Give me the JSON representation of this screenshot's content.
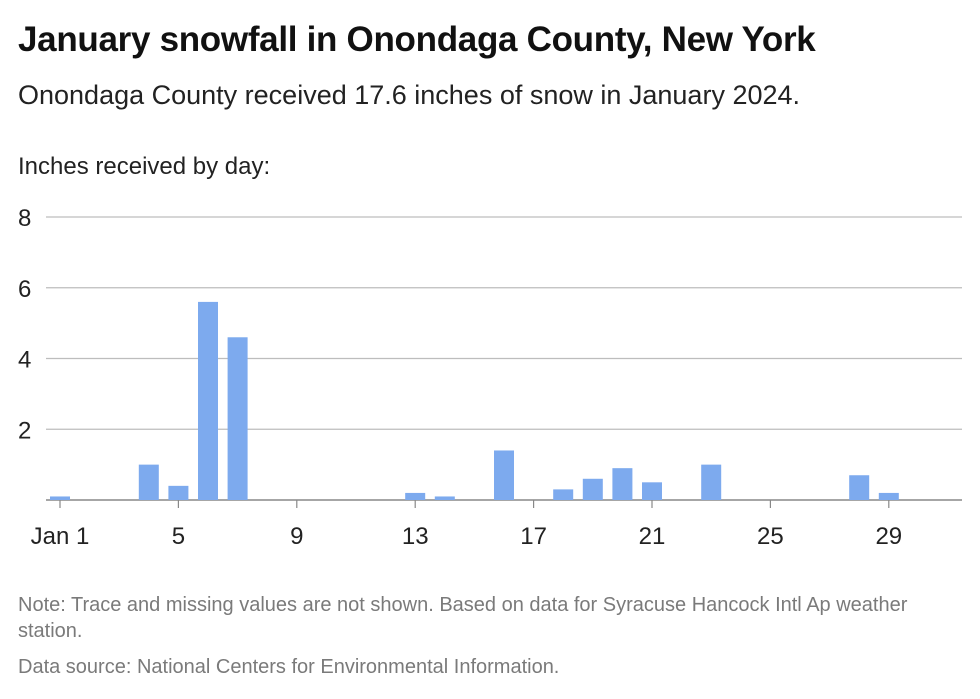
{
  "header": {
    "title": "January snowfall in Onondaga County, New York",
    "subtitle": "Onondaga County received 17.6 inches of snow in January 2024."
  },
  "chart_data": {
    "type": "bar",
    "ylabel": "Inches received by day:",
    "ylim": [
      0,
      8
    ],
    "yticks": [
      2,
      4,
      6,
      8
    ],
    "xticks": [
      {
        "day": 1,
        "label": "Jan 1"
      },
      {
        "day": 5,
        "label": "5"
      },
      {
        "day": 9,
        "label": "9"
      },
      {
        "day": 13,
        "label": "13"
      },
      {
        "day": 17,
        "label": "17"
      },
      {
        "day": 21,
        "label": "21"
      },
      {
        "day": 25,
        "label": "25"
      },
      {
        "day": 29,
        "label": "29"
      }
    ],
    "x": [
      1,
      4,
      5,
      6,
      7,
      13,
      14,
      16,
      18,
      19,
      20,
      21,
      23,
      28,
      29
    ],
    "values": [
      0.1,
      1.0,
      0.4,
      5.6,
      4.6,
      0.2,
      0.1,
      1.4,
      0.3,
      0.6,
      0.9,
      0.5,
      1.0,
      0.7,
      0.2
    ],
    "grid": true,
    "colors": {
      "bar": "#7daaee",
      "grid": "#bdbdbd",
      "baseline": "#888888"
    }
  },
  "notes": {
    "note": "Note: Trace and missing values are not shown. Based on data for Syracuse Hancock Intl Ap weather station.",
    "source": "Data source: National Centers for Environmental Information."
  }
}
